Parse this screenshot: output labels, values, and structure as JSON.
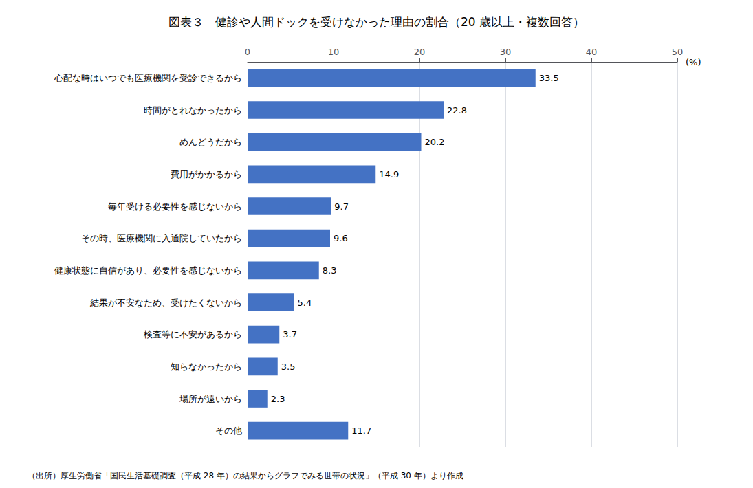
{
  "chart_data": {
    "type": "bar",
    "orientation": "horizontal",
    "title": "図表３　健診や人間ドックを受けなかった理由の割合（20 歳以上・複数回答）",
    "xlabel": "(%)",
    "annotations": [
      "（出所）厚生労働省「国民生活基礎調査（平成 28 年）の結果からグラフでみる世帯の状況」（平成 30 年）より作成"
    ],
    "categories": [
      "心配な時はいつでも医療機関を受診できるから",
      "時間がとれなかったから",
      "めんどうだから",
      "費用がかかるから",
      "毎年受ける必要性を感じないから",
      "その時、医療機関に入通院していたから",
      "健康状態に自信があり、必要性を感じないから",
      "結果が不安なため、受けたくないから",
      "検査等に不安があるから",
      "知らなかったから",
      "場所が遠いから",
      "その他"
    ],
    "values": [
      33.5,
      22.8,
      20.2,
      14.9,
      9.7,
      9.6,
      8.3,
      5.4,
      3.7,
      3.5,
      2.3,
      11.7
    ],
    "color": "#4472C4",
    "xlim": [
      0,
      50
    ],
    "xticks": [
      0,
      10,
      20,
      30,
      40,
      50
    ],
    "grid": true,
    "data_labels": true
  }
}
